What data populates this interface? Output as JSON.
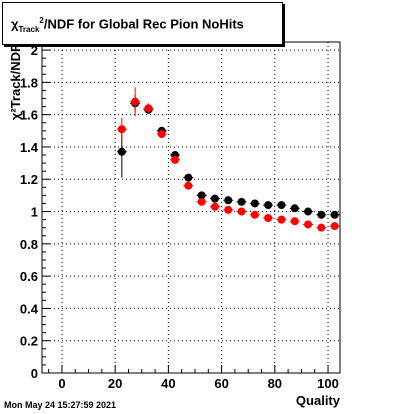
{
  "footer_timestamp": "Mon May 24 15:27:59 2021",
  "chart_data": {
    "type": "scatter",
    "title_prefix": "χ",
    "title_sup": "2",
    "title_sub": "Track",
    "title_suffix": "/NDF for Global Rec Pion NoHits",
    "xlabel": "Quality",
    "ylabel": "χ²Track/NDF",
    "xlim": [
      -7.5,
      104.5
    ],
    "ylim": [
      0,
      2.05
    ],
    "x_ticks": [
      0,
      20,
      40,
      60,
      80,
      100
    ],
    "y_ticks": [
      0,
      0.2,
      0.4,
      0.6,
      0.8,
      1,
      1.2,
      1.4,
      1.6,
      1.8,
      2
    ],
    "y_tick_labels": [
      "0",
      "0.2",
      "0.4",
      "0.6",
      "0.8",
      "1",
      "1.2",
      "1.4",
      "1.6",
      "1.8",
      "2"
    ],
    "grid": true,
    "series": [
      {
        "color": "#000000",
        "x": [
          22.5,
          27.5,
          32.5,
          37.5,
          42.5,
          47.5,
          52.5,
          57.5,
          62.5,
          67.5,
          72.5,
          77.5,
          82.5,
          87.5,
          92.5,
          97.5,
          102.5
        ],
        "y": [
          1.37,
          1.67,
          1.63,
          1.5,
          1.35,
          1.21,
          1.1,
          1.08,
          1.07,
          1.06,
          1.05,
          1.04,
          1.04,
          1.02,
          1.0,
          0.98,
          0.98
        ],
        "yerr": [
          0.16,
          0.05,
          0.02,
          0.02,
          0.01,
          0.01,
          0.01,
          0.01,
          0.01,
          0.01,
          0.01,
          0.01,
          0.01,
          0.01,
          0.01,
          0.01,
          0.01
        ]
      },
      {
        "color": "#ff0000",
        "x": [
          22.5,
          27.5,
          32.5,
          37.5,
          42.5,
          47.5,
          52.5,
          57.5,
          62.5,
          67.5,
          72.5,
          77.5,
          82.5,
          87.5,
          92.5,
          97.5,
          102.5
        ],
        "y": [
          1.51,
          1.68,
          1.64,
          1.48,
          1.32,
          1.16,
          1.06,
          1.03,
          1.01,
          1.0,
          0.98,
          0.96,
          0.95,
          0.94,
          0.92,
          0.9,
          0.91
        ],
        "yerr": [
          0.07,
          0.09,
          0.03,
          0.02,
          0.01,
          0.01,
          0.01,
          0.01,
          0.01,
          0.01,
          0.01,
          0.01,
          0.01,
          0.01,
          0.01,
          0.01,
          0.01
        ]
      }
    ]
  }
}
